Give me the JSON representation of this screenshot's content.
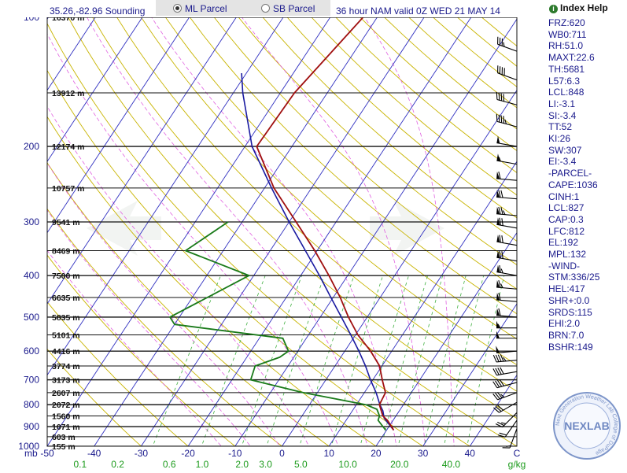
{
  "header": {
    "station": "35.26,-82.96 Sounding",
    "parcel_options": [
      {
        "label": "ML Parcel",
        "selected": true
      },
      {
        "label": "SB Parcel",
        "selected": false
      }
    ],
    "valid": "36 hour NAM valid 0Z WED 21 MAY 14"
  },
  "index_help": "Index Help",
  "indices": [
    "FRZ:620",
    "WB0:711",
    "RH:51.0",
    "MAXT:22.6",
    "TH:5681",
    "L57:6.3",
    "LCL:848",
    "LI:-3.1",
    "SI:-3.4",
    "TT:52",
    "KI:26",
    "SW:307",
    "EI:-3.4",
    "-PARCEL-",
    "CAPE:1036",
    "CINH:1",
    "LCL:827",
    "CAP:0.3",
    "LFC:812",
    "EL:192",
    "MPL:132",
    "-WIND-",
    "STM:336/25",
    "HEL:417",
    "SHR+:0.0",
    "SRDS:115",
    "EHI:2.0",
    "BRN:7.0",
    "BSHR:149"
  ],
  "logo": {
    "text": "NEXLAB",
    "ring_text": "Next Generation Weather Lab  College of DuPage"
  },
  "chart_data": {
    "type": "skew-t",
    "pressure_unit": "mb",
    "temperature_unit": "C",
    "mixing_ratio_unit": "g/kg",
    "pressure_range": [
      1000,
      100
    ],
    "temperature_range": [
      -50,
      50
    ],
    "pressure_ticks": [
      100,
      200,
      300,
      400,
      500,
      600,
      700,
      800,
      900,
      1000
    ],
    "temperature_ticks": [
      -50,
      -40,
      -30,
      -20,
      -10,
      0,
      10,
      20,
      30,
      40
    ],
    "mixing_ratio_ticks": [
      {
        "label": "0.1",
        "t": -43
      },
      {
        "label": "0.2",
        "t": -35
      },
      {
        "label": "0.6",
        "t": -24
      },
      {
        "label": "1.0",
        "t": -17
      },
      {
        "label": "2.0",
        "t": -8.5
      },
      {
        "label": "3.0",
        "t": -3.5
      },
      {
        "label": "5.0",
        "t": 4
      },
      {
        "label": "10.0",
        "t": 14
      },
      {
        "label": "20.0",
        "t": 25
      },
      {
        "label": "40.0",
        "t": 36
      }
    ],
    "height_labels": [
      {
        "p": 100,
        "label": "16370 m"
      },
      {
        "p": 150,
        "label": "13912 m"
      },
      {
        "p": 200,
        "label": "12174 m"
      },
      {
        "p": 250,
        "label": "10757 m"
      },
      {
        "p": 300,
        "label": "9541 m"
      },
      {
        "p": 350,
        "label": "8469 m"
      },
      {
        "p": 400,
        "label": "7500 m"
      },
      {
        "p": 450,
        "label": "6635 m"
      },
      {
        "p": 500,
        "label": "5835 m"
      },
      {
        "p": 550,
        "label": "5101 m"
      },
      {
        "p": 600,
        "label": "4416 m"
      },
      {
        "p": 650,
        "label": "3774 m"
      },
      {
        "p": 700,
        "label": "3173 m"
      },
      {
        "p": 750,
        "label": "2607 m"
      },
      {
        "p": 800,
        "label": "2072 m"
      },
      {
        "p": 850,
        "label": "1560 m"
      },
      {
        "p": 900,
        "label": "1071 m"
      },
      {
        "p": 950,
        "label": "603 m"
      },
      {
        "p": 1000,
        "label": "155 m"
      }
    ],
    "temperature": [
      [
        917,
        21.5
      ],
      [
        870,
        18.8
      ],
      [
        850,
        17.2
      ],
      [
        800,
        14.9
      ],
      [
        750,
        14.5
      ],
      [
        700,
        12
      ],
      [
        650,
        9.5
      ],
      [
        600,
        5.5
      ],
      [
        550,
        0.5
      ],
      [
        500,
        -4
      ],
      [
        450,
        -8.5
      ],
      [
        400,
        -14
      ],
      [
        350,
        -20.5
      ],
      [
        300,
        -28.5
      ],
      [
        250,
        -38
      ],
      [
        200,
        -47.5
      ],
      [
        150,
        -47
      ],
      [
        100,
        -43
      ]
    ],
    "dewpoint": [
      [
        917,
        19.8
      ],
      [
        870,
        16.8
      ],
      [
        850,
        16.5
      ],
      [
        820,
        15
      ],
      [
        800,
        12
      ],
      [
        750,
        -3
      ],
      [
        700,
        -16
      ],
      [
        650,
        -17
      ],
      [
        620,
        -13
      ],
      [
        600,
        -12
      ],
      [
        560,
        -15
      ],
      [
        520,
        -40
      ],
      [
        500,
        -42
      ],
      [
        400,
        -31
      ],
      [
        350,
        -48
      ],
      [
        300,
        -43
      ]
    ],
    "parcel": [
      [
        917,
        21.5
      ],
      [
        860,
        17.8
      ],
      [
        827,
        16.5
      ],
      [
        800,
        15
      ],
      [
        750,
        12.5
      ],
      [
        700,
        9.5
      ],
      [
        650,
        6.5
      ],
      [
        600,
        3
      ],
      [
        550,
        -1
      ],
      [
        500,
        -5.5
      ],
      [
        450,
        -10.5
      ],
      [
        400,
        -16
      ],
      [
        350,
        -22.5
      ],
      [
        300,
        -30
      ],
      [
        250,
        -38.5
      ],
      [
        200,
        -48.5
      ],
      [
        150,
        -58
      ],
      [
        135,
        -61
      ]
    ],
    "wind_barbs": [
      {
        "p": 910,
        "dir": 200,
        "spd": 15
      },
      {
        "p": 870,
        "dir": 215,
        "spd": 20
      },
      {
        "p": 835,
        "dir": 225,
        "spd": 25
      },
      {
        "p": 790,
        "dir": 240,
        "spd": 30
      },
      {
        "p": 750,
        "dir": 250,
        "spd": 35
      },
      {
        "p": 710,
        "dir": 255,
        "spd": 40
      },
      {
        "p": 670,
        "dir": 260,
        "spd": 40
      },
      {
        "p": 630,
        "dir": 265,
        "spd": 45
      },
      {
        "p": 600,
        "dir": 265,
        "spd": 50
      },
      {
        "p": 560,
        "dir": 270,
        "spd": 50
      },
      {
        "p": 530,
        "dir": 270,
        "spd": 55
      },
      {
        "p": 500,
        "dir": 275,
        "spd": 60
      },
      {
        "p": 460,
        "dir": 275,
        "spd": 60
      },
      {
        "p": 430,
        "dir": 275,
        "spd": 65
      },
      {
        "p": 400,
        "dir": 280,
        "spd": 65
      },
      {
        "p": 370,
        "dir": 280,
        "spd": 70
      },
      {
        "p": 340,
        "dir": 280,
        "spd": 70
      },
      {
        "p": 310,
        "dir": 280,
        "spd": 70
      },
      {
        "p": 290,
        "dir": 275,
        "spd": 75
      },
      {
        "p": 265,
        "dir": 275,
        "spd": 70
      },
      {
        "p": 240,
        "dir": 275,
        "spd": 60
      },
      {
        "p": 220,
        "dir": 280,
        "spd": 55
      },
      {
        "p": 200,
        "dir": 280,
        "spd": 50
      },
      {
        "p": 180,
        "dir": 285,
        "spd": 45
      },
      {
        "p": 160,
        "dir": 285,
        "spd": 40
      },
      {
        "p": 140,
        "dir": 290,
        "spd": 40
      },
      {
        "p": 120,
        "dir": 290,
        "spd": 35
      }
    ],
    "colors": {
      "temperature": "#a01010",
      "dewpoint": "#1a7a1a",
      "parcel": "#1a1aa0",
      "isobar": "#111111",
      "isotherm": "#3030c0",
      "dry_adiabat": "#c8b400",
      "moist_adiabat": "#e060e0",
      "mixing_ratio": "#40b040",
      "axis_label": "#1a1a8c",
      "mixing_ratio_label": "#1a9a1a"
    }
  }
}
